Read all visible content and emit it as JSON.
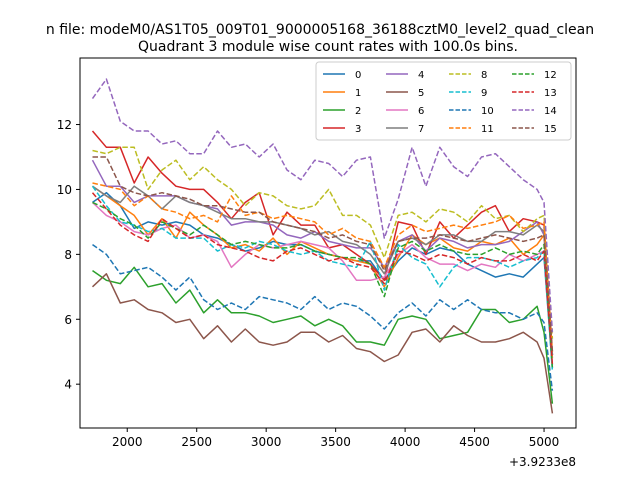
{
  "chart_data": {
    "type": "line",
    "suptitle": "n file: modeM0/AS1T05_009T01_9000005168_36188cztM0_level2_quad_clean",
    "title": "Quadrant 3 module wise count rates with 100.0s bins.",
    "xlabel": "",
    "ylabel": "",
    "x_offset_label": "+3.9233e8",
    "xlim": [
      1660,
      5230
    ],
    "ylim": [
      2.65,
      14.05
    ],
    "xticks": [
      2000,
      2500,
      3000,
      3500,
      4000,
      4500,
      5000
    ],
    "yticks": [
      4,
      6,
      8,
      10,
      12
    ],
    "grid": false,
    "legend": {
      "placement": "top-right",
      "columns": 4
    },
    "x": [
      1750,
      1850,
      1950,
      2050,
      2150,
      2250,
      2350,
      2450,
      2550,
      2650,
      2750,
      2850,
      2950,
      3050,
      3150,
      3250,
      3350,
      3450,
      3550,
      3650,
      3750,
      3850,
      3950,
      4050,
      4150,
      4250,
      4350,
      4450,
      4550,
      4650,
      4750,
      4850,
      4950,
      5000,
      5060
    ],
    "series": [
      {
        "name": "0",
        "color": "#1f77b4",
        "dash": "solid",
        "values": [
          9.6,
          9.9,
          9.5,
          8.8,
          9.0,
          8.9,
          9.0,
          8.9,
          8.6,
          8.5,
          8.3,
          8.1,
          8.2,
          8.4,
          8.3,
          8.3,
          8.1,
          8.0,
          7.9,
          7.8,
          7.8,
          7.2,
          7.8,
          8.2,
          8.0,
          8.2,
          8.1,
          7.7,
          7.5,
          7.3,
          7.4,
          7.3,
          7.7,
          7.9,
          4.5
        ]
      },
      {
        "name": "1",
        "color": "#ff7f0e",
        "dash": "solid",
        "values": [
          10.1,
          9.8,
          9.5,
          9.2,
          8.6,
          9.1,
          8.5,
          9.3,
          8.9,
          8.6,
          8.2,
          8.3,
          8.1,
          8.5,
          8.0,
          8.4,
          8.2,
          8.0,
          7.9,
          7.8,
          7.7,
          7.0,
          7.9,
          8.6,
          8.3,
          8.5,
          8.2,
          8.1,
          8.4,
          8.3,
          8.5,
          8.0,
          8.3,
          8.6,
          4.8
        ]
      },
      {
        "name": "2",
        "color": "#2ca02c",
        "dash": "solid",
        "values": [
          7.5,
          7.2,
          7.1,
          7.6,
          7.0,
          7.1,
          6.5,
          6.9,
          6.2,
          6.6,
          6.2,
          6.2,
          6.1,
          5.9,
          6.0,
          6.1,
          5.8,
          6.0,
          5.8,
          5.3,
          5.3,
          5.2,
          6.0,
          6.1,
          6.0,
          5.4,
          5.5,
          5.6,
          6.3,
          6.3,
          5.9,
          6.0,
          6.4,
          5.6,
          3.4
        ]
      },
      {
        "name": "3",
        "color": "#d62728",
        "dash": "solid",
        "values": [
          11.8,
          11.3,
          11.3,
          10.2,
          11.0,
          10.5,
          10.1,
          10.0,
          10.0,
          9.6,
          9.1,
          9.6,
          9.9,
          8.6,
          9.3,
          8.9,
          8.9,
          8.2,
          8.3,
          8.0,
          7.7,
          7.2,
          9.0,
          8.9,
          8.0,
          9.0,
          8.5,
          8.9,
          9.3,
          9.5,
          8.7,
          9.1,
          9.0,
          8.9,
          4.9
        ]
      },
      {
        "name": "4",
        "color": "#9467bd",
        "dash": "solid",
        "values": [
          10.9,
          10.1,
          10.1,
          9.6,
          9.8,
          9.8,
          9.8,
          9.6,
          9.5,
          9.4,
          8.9,
          9.0,
          9.0,
          8.9,
          8.6,
          8.5,
          8.7,
          8.4,
          8.3,
          8.2,
          8.2,
          7.6,
          8.4,
          8.6,
          8.1,
          8.5,
          8.4,
          8.2,
          8.3,
          8.3,
          8.4,
          8.7,
          9.0,
          8.6,
          4.9
        ]
      },
      {
        "name": "5",
        "color": "#8c564b",
        "dash": "solid",
        "values": [
          7.0,
          7.4,
          6.5,
          6.6,
          6.3,
          6.2,
          5.9,
          6.0,
          5.4,
          5.8,
          5.3,
          5.7,
          5.3,
          5.2,
          5.3,
          5.6,
          5.6,
          5.3,
          5.5,
          5.1,
          5.0,
          4.7,
          4.9,
          5.6,
          5.7,
          5.3,
          5.8,
          5.5,
          5.3,
          5.3,
          5.4,
          5.6,
          5.3,
          4.8,
          3.1
        ]
      },
      {
        "name": "6",
        "color": "#e377c2",
        "dash": "solid",
        "values": [
          9.6,
          9.2,
          9.0,
          8.7,
          8.6,
          8.8,
          8.9,
          8.5,
          8.6,
          8.4,
          7.6,
          8.0,
          8.3,
          8.2,
          8.3,
          8.4,
          8.3,
          8.2,
          7.8,
          7.2,
          7.2,
          7.3,
          8.0,
          8.3,
          7.9,
          7.7,
          7.7,
          7.5,
          7.7,
          7.6,
          8.0,
          7.8,
          8.0,
          8.1,
          4.6
        ]
      },
      {
        "name": "7",
        "color": "#7f7f7f",
        "dash": "solid",
        "values": [
          10.1,
          9.8,
          9.6,
          10.1,
          9.8,
          9.4,
          9.8,
          9.6,
          9.5,
          9.3,
          9.1,
          9.1,
          9.0,
          9.0,
          8.9,
          8.8,
          8.6,
          8.7,
          8.4,
          8.3,
          8.0,
          7.4,
          8.4,
          8.5,
          8.3,
          8.6,
          8.6,
          8.4,
          8.4,
          8.7,
          8.7,
          8.6,
          8.9,
          8.7,
          4.9
        ]
      },
      {
        "name": "8",
        "color": "#bcbd22",
        "dash": "dashed",
        "values": [
          11.2,
          11.1,
          11.3,
          11.3,
          10.0,
          10.6,
          10.9,
          10.3,
          10.7,
          10.3,
          10.0,
          9.5,
          9.9,
          9.8,
          9.5,
          9.4,
          9.5,
          10.0,
          9.2,
          9.2,
          8.9,
          7.9,
          9.2,
          9.3,
          9.0,
          9.4,
          9.3,
          9.0,
          9.5,
          9.1,
          9.2,
          8.7,
          9.1,
          9.2,
          5.4
        ]
      },
      {
        "name": "9",
        "color": "#17becf",
        "dash": "dashed",
        "values": [
          10.1,
          9.5,
          9.0,
          8.9,
          8.7,
          8.8,
          8.5,
          8.5,
          8.5,
          8.1,
          8.3,
          8.2,
          8.4,
          8.3,
          8.1,
          8.0,
          8.1,
          7.8,
          7.7,
          7.6,
          8.4,
          6.9,
          8.3,
          7.9,
          7.7,
          7.0,
          7.6,
          7.9,
          7.9,
          7.8,
          7.6,
          7.8,
          7.9,
          8.1,
          4.4
        ]
      },
      {
        "name": "10",
        "color": "#1f77b4",
        "dash": "dashed",
        "values": [
          8.3,
          8.0,
          7.4,
          7.5,
          7.6,
          7.3,
          6.9,
          7.3,
          6.6,
          6.3,
          6.5,
          6.3,
          6.7,
          6.6,
          6.5,
          6.3,
          6.7,
          6.3,
          6.5,
          6.4,
          6.1,
          5.7,
          6.2,
          6.5,
          6.1,
          6.6,
          6.3,
          6.6,
          6.3,
          6.2,
          6.2,
          6.0,
          6.2,
          5.9,
          3.8
        ]
      },
      {
        "name": "11",
        "color": "#ff7f0e",
        "dash": "dashed",
        "values": [
          10.2,
          10.1,
          10.0,
          9.5,
          9.8,
          9.4,
          9.3,
          9.1,
          9.2,
          9.0,
          9.8,
          9.2,
          9.3,
          9.1,
          9.2,
          9.1,
          9.0,
          8.6,
          8.8,
          8.5,
          8.4,
          7.6,
          8.6,
          8.9,
          8.7,
          8.8,
          8.9,
          8.8,
          8.9,
          9.0,
          9.2,
          8.8,
          8.9,
          9.0,
          5.0
        ]
      },
      {
        "name": "12",
        "color": "#2ca02c",
        "dash": "dashed",
        "values": [
          9.6,
          9.4,
          9.1,
          8.9,
          8.5,
          9.0,
          8.8,
          8.6,
          8.9,
          8.6,
          8.3,
          8.4,
          8.3,
          8.2,
          8.2,
          8.3,
          8.1,
          8.0,
          7.9,
          7.9,
          7.7,
          6.7,
          8.2,
          8.4,
          8.1,
          8.3,
          8.1,
          8.0,
          8.0,
          8.2,
          8.0,
          8.1,
          8.0,
          8.3,
          4.5
        ]
      },
      {
        "name": "13",
        "color": "#d62728",
        "dash": "dashed",
        "values": [
          9.9,
          9.4,
          8.9,
          8.6,
          8.4,
          9.1,
          8.8,
          8.5,
          8.6,
          8.3,
          8.2,
          8.1,
          7.9,
          7.8,
          8.1,
          8.2,
          8.0,
          7.8,
          7.9,
          7.7,
          7.6,
          7.1,
          8.1,
          8.0,
          7.8,
          8.0,
          7.9,
          7.7,
          7.9,
          7.8,
          7.8,
          8.0,
          7.8,
          8.1,
          4.6
        ]
      },
      {
        "name": "14",
        "color": "#9467bd",
        "dash": "dashed",
        "values": [
          12.8,
          13.4,
          12.1,
          11.8,
          11.8,
          11.4,
          11.5,
          11.1,
          11.1,
          11.8,
          11.3,
          11.4,
          11.0,
          11.4,
          10.6,
          10.3,
          10.9,
          10.8,
          10.4,
          10.9,
          11.0,
          8.5,
          9.7,
          11.3,
          10.1,
          11.3,
          10.7,
          10.4,
          11.0,
          11.1,
          10.7,
          10.3,
          10.0,
          9.6,
          5.6
        ]
      },
      {
        "name": "15",
        "color": "#8c564b",
        "dash": "dashed",
        "values": [
          11.0,
          11.0,
          10.1,
          9.9,
          9.8,
          9.9,
          9.8,
          9.7,
          9.5,
          9.5,
          9.4,
          9.3,
          9.3,
          9.0,
          8.9,
          8.8,
          8.7,
          8.5,
          8.6,
          8.4,
          8.3,
          7.5,
          8.4,
          8.5,
          8.5,
          8.6,
          8.5,
          8.4,
          8.5,
          8.6,
          8.5,
          8.4,
          8.5,
          8.6,
          5.0
        ]
      }
    ]
  }
}
